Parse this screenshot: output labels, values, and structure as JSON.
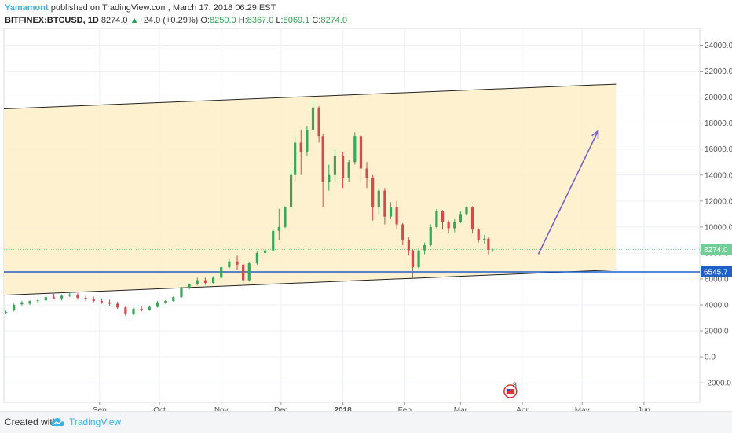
{
  "header": {
    "author": "Yamamont",
    "published": "published on TradingView.com, March 17, 2018 06:29 EST",
    "symbol": "BITFINEX:BTCUSD, 1D",
    "last": "8274.0",
    "change": "+24.0 (+0.29%)",
    "o_label": "O:",
    "o_value": "8250.0",
    "h_label": "H:",
    "h_value": "8367.0",
    "l_label": "L:",
    "l_value": "8069.1",
    "c_label": "C:",
    "c_value": "8274.0"
  },
  "footer": {
    "created": "Created with",
    "brand": "TradingView"
  },
  "chart_data": {
    "type": "candlestick",
    "x_ticks": [
      "Sep",
      "Oct",
      "Nov",
      "Dec",
      "2018",
      "Feb",
      "Mar",
      "Apr",
      "May",
      "Jun"
    ],
    "y_ticks": [
      "24000.0",
      "22000.0",
      "20000.0",
      "18000.0",
      "16000.0",
      "14000.0",
      "12000.0",
      "10000.0",
      "8000.0",
      "6000.0",
      "4000.0",
      "2000.0",
      "0.0",
      "-2000.0"
    ],
    "ylim": [
      -3500,
      25300
    ],
    "grid": true,
    "price_labels": [
      {
        "value": 8274.0,
        "text": "8274.0",
        "color": "#6fcf97"
      },
      {
        "value": 6545.7,
        "text": "6545.7",
        "color": "#1e5fc8"
      }
    ],
    "horizontal_lines": [
      {
        "value": 6545.7,
        "color": "#1e5fc8"
      },
      {
        "value": 8274.0,
        "color": "#6fcf97",
        "dotted": true
      }
    ],
    "channel": {
      "fill": "#fdeec8",
      "upper": [
        {
          "date": "2017-07-15",
          "price": 19100
        },
        {
          "date": "2018-05-18",
          "price": 21000
        }
      ],
      "lower": [
        {
          "date": "2017-07-15",
          "price": 4750
        },
        {
          "date": "2018-05-18",
          "price": 6700
        }
      ]
    },
    "arrow": {
      "from": {
        "date": "2018-04-09",
        "price": 7900
      },
      "to": {
        "date": "2018-05-09",
        "price": 17400
      },
      "color": "#7b61c4"
    },
    "event_badge": {
      "text": "8",
      "date": "2018-03-26"
    },
    "series": [
      {
        "date": "2017-07-16",
        "open": 3400,
        "high": 3550,
        "low": 3300,
        "close": 3450
      },
      {
        "date": "2017-07-20",
        "open": 3600,
        "high": 4100,
        "low": 3500,
        "close": 4000
      },
      {
        "date": "2017-07-24",
        "open": 4050,
        "high": 4300,
        "low": 3950,
        "close": 4200
      },
      {
        "date": "2017-07-28",
        "open": 4100,
        "high": 4350,
        "low": 4000,
        "close": 4300
      },
      {
        "date": "2017-08-01",
        "open": 4300,
        "high": 4500,
        "low": 4150,
        "close": 4350
      },
      {
        "date": "2017-08-05",
        "open": 4350,
        "high": 4700,
        "low": 4300,
        "close": 4600
      },
      {
        "date": "2017-08-09",
        "open": 4600,
        "high": 4850,
        "low": 4450,
        "close": 4500
      },
      {
        "date": "2017-08-13",
        "open": 4500,
        "high": 4800,
        "low": 4350,
        "close": 4700
      },
      {
        "date": "2017-08-17",
        "open": 4700,
        "high": 5000,
        "low": 4600,
        "close": 4800
      },
      {
        "date": "2017-08-21",
        "open": 4800,
        "high": 4900,
        "low": 4400,
        "close": 4550
      },
      {
        "date": "2017-08-25",
        "open": 4550,
        "high": 4700,
        "low": 4300,
        "close": 4450
      },
      {
        "date": "2017-08-29",
        "open": 4450,
        "high": 4650,
        "low": 4200,
        "close": 4300
      },
      {
        "date": "2017-09-02",
        "open": 4300,
        "high": 4500,
        "low": 4100,
        "close": 4200
      },
      {
        "date": "2017-09-06",
        "open": 4200,
        "high": 4400,
        "low": 3900,
        "close": 4100
      },
      {
        "date": "2017-09-10",
        "open": 4100,
        "high": 4250,
        "low": 3700,
        "close": 3800
      },
      {
        "date": "2017-09-14",
        "open": 3800,
        "high": 3900,
        "low": 3150,
        "close": 3300
      },
      {
        "date": "2017-09-18",
        "open": 3300,
        "high": 3800,
        "low": 3200,
        "close": 3700
      },
      {
        "date": "2017-09-22",
        "open": 3700,
        "high": 3900,
        "low": 3500,
        "close": 3600
      },
      {
        "date": "2017-09-26",
        "open": 3600,
        "high": 3950,
        "low": 3550,
        "close": 3850
      },
      {
        "date": "2017-09-30",
        "open": 3850,
        "high": 4300,
        "low": 3800,
        "close": 4200
      },
      {
        "date": "2017-10-04",
        "open": 4200,
        "high": 4350,
        "low": 4100,
        "close": 4300
      },
      {
        "date": "2017-10-08",
        "open": 4300,
        "high": 4650,
        "low": 4250,
        "close": 4600
      },
      {
        "date": "2017-10-12",
        "open": 4600,
        "high": 5400,
        "low": 4550,
        "close": 5300
      },
      {
        "date": "2017-10-16",
        "open": 5300,
        "high": 5650,
        "low": 5200,
        "close": 5600
      },
      {
        "date": "2017-10-20",
        "open": 5600,
        "high": 6100,
        "low": 5500,
        "close": 5900
      },
      {
        "date": "2017-10-24",
        "open": 5900,
        "high": 6100,
        "low": 5550,
        "close": 5700
      },
      {
        "date": "2017-10-28",
        "open": 5700,
        "high": 6200,
        "low": 5650,
        "close": 6100
      },
      {
        "date": "2017-11-01",
        "open": 6100,
        "high": 7000,
        "low": 6050,
        "close": 6900
      },
      {
        "date": "2017-11-05",
        "open": 6900,
        "high": 7500,
        "low": 6800,
        "close": 7350
      },
      {
        "date": "2017-11-09",
        "open": 7350,
        "high": 7800,
        "low": 6700,
        "close": 7100
      },
      {
        "date": "2017-11-12",
        "open": 7100,
        "high": 7200,
        "low": 5600,
        "close": 5900
      },
      {
        "date": "2017-11-15",
        "open": 5900,
        "high": 7300,
        "low": 5800,
        "close": 7200
      },
      {
        "date": "2017-11-19",
        "open": 7200,
        "high": 8100,
        "low": 7100,
        "close": 8000
      },
      {
        "date": "2017-11-23",
        "open": 8000,
        "high": 8300,
        "low": 7900,
        "close": 8200
      },
      {
        "date": "2017-11-27",
        "open": 8200,
        "high": 9800,
        "low": 8100,
        "close": 9700
      },
      {
        "date": "2017-11-30",
        "open": 9700,
        "high": 11400,
        "low": 9000,
        "close": 10000
      },
      {
        "date": "2017-12-03",
        "open": 10000,
        "high": 11600,
        "low": 9900,
        "close": 11500
      },
      {
        "date": "2017-12-06",
        "open": 11500,
        "high": 14500,
        "low": 11400,
        "close": 14000
      },
      {
        "date": "2017-12-08",
        "open": 14000,
        "high": 17000,
        "low": 13500,
        "close": 16500
      },
      {
        "date": "2017-12-11",
        "open": 16500,
        "high": 17500,
        "low": 14000,
        "close": 15800
      },
      {
        "date": "2017-12-14",
        "open": 15800,
        "high": 17800,
        "low": 15500,
        "close": 17500
      },
      {
        "date": "2017-12-17",
        "open": 17500,
        "high": 19800,
        "low": 17400,
        "close": 19200
      },
      {
        "date": "2017-12-20",
        "open": 19200,
        "high": 19300,
        "low": 16500,
        "close": 17000
      },
      {
        "date": "2017-12-22",
        "open": 17000,
        "high": 17200,
        "low": 11500,
        "close": 13500
      },
      {
        "date": "2017-12-25",
        "open": 13500,
        "high": 14800,
        "low": 12800,
        "close": 14000
      },
      {
        "date": "2017-12-28",
        "open": 14000,
        "high": 16000,
        "low": 13500,
        "close": 15500
      },
      {
        "date": "2018-01-01",
        "open": 15500,
        "high": 15800,
        "low": 13000,
        "close": 13800
      },
      {
        "date": "2018-01-04",
        "open": 13800,
        "high": 15200,
        "low": 13500,
        "close": 15000
      },
      {
        "date": "2018-01-07",
        "open": 15000,
        "high": 17300,
        "low": 14800,
        "close": 17000
      },
      {
        "date": "2018-01-10",
        "open": 17000,
        "high": 17200,
        "low": 13500,
        "close": 14500
      },
      {
        "date": "2018-01-13",
        "open": 14500,
        "high": 15000,
        "low": 13000,
        "close": 13800
      },
      {
        "date": "2018-01-16",
        "open": 13800,
        "high": 14000,
        "low": 10500,
        "close": 11500
      },
      {
        "date": "2018-01-19",
        "open": 11500,
        "high": 13000,
        "low": 11000,
        "close": 12800
      },
      {
        "date": "2018-01-22",
        "open": 12800,
        "high": 13000,
        "low": 10200,
        "close": 10800
      },
      {
        "date": "2018-01-25",
        "open": 10800,
        "high": 11900,
        "low": 10600,
        "close": 11500
      },
      {
        "date": "2018-01-28",
        "open": 11500,
        "high": 12000,
        "low": 9800,
        "close": 10200
      },
      {
        "date": "2018-01-31",
        "open": 10200,
        "high": 10300,
        "low": 8600,
        "close": 9000
      },
      {
        "date": "2018-02-03",
        "open": 9000,
        "high": 9200,
        "low": 7800,
        "close": 8200
      },
      {
        "date": "2018-02-05",
        "open": 8200,
        "high": 8300,
        "low": 6100,
        "close": 6900
      },
      {
        "date": "2018-02-08",
        "open": 6900,
        "high": 8400,
        "low": 6800,
        "close": 8200
      },
      {
        "date": "2018-02-11",
        "open": 8200,
        "high": 8800,
        "low": 7900,
        "close": 8600
      },
      {
        "date": "2018-02-14",
        "open": 8600,
        "high": 10200,
        "low": 8500,
        "close": 10000
      },
      {
        "date": "2018-02-17",
        "open": 10000,
        "high": 11400,
        "low": 9900,
        "close": 11200
      },
      {
        "date": "2018-02-20",
        "open": 11200,
        "high": 11300,
        "low": 9800,
        "close": 10400
      },
      {
        "date": "2018-02-23",
        "open": 10400,
        "high": 10500,
        "low": 9500,
        "close": 9900
      },
      {
        "date": "2018-02-26",
        "open": 9900,
        "high": 10600,
        "low": 9600,
        "close": 10400
      },
      {
        "date": "2018-03-01",
        "open": 10400,
        "high": 11200,
        "low": 10300,
        "close": 11000
      },
      {
        "date": "2018-03-04",
        "open": 11000,
        "high": 11600,
        "low": 10900,
        "close": 11500
      },
      {
        "date": "2018-03-07",
        "open": 11500,
        "high": 11600,
        "low": 9500,
        "close": 9800
      },
      {
        "date": "2018-03-10",
        "open": 9800,
        "high": 9900,
        "low": 8800,
        "close": 9000
      },
      {
        "date": "2018-03-13",
        "open": 9000,
        "high": 9400,
        "low": 8700,
        "close": 9100
      },
      {
        "date": "2018-03-15",
        "open": 9100,
        "high": 9200,
        "low": 7900,
        "close": 8250
      },
      {
        "date": "2018-03-17",
        "open": 8250,
        "high": 8367,
        "low": 8069.1,
        "close": 8274
      }
    ]
  }
}
